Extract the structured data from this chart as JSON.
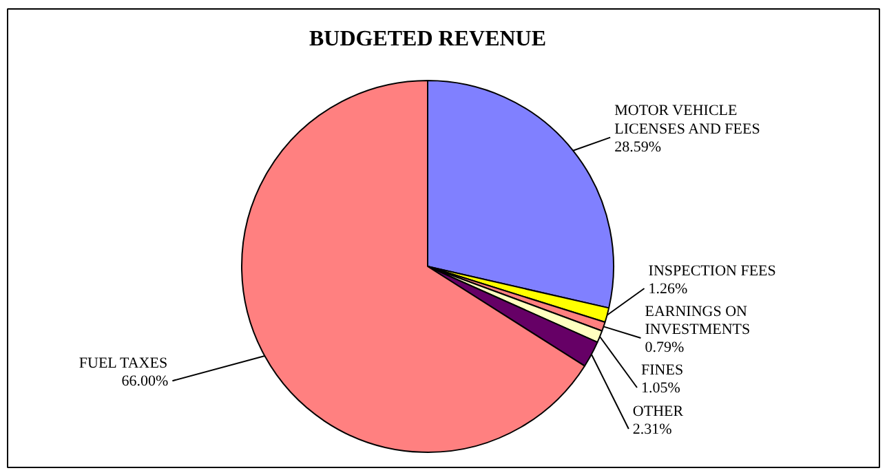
{
  "chart_data": {
    "type": "pie",
    "title": "BUDGETED REVENUE",
    "categories": [
      "MOTOR VEHICLE LICENSES AND FEES",
      "INSPECTION FEES",
      "EARNINGS ON INVESTMENTS",
      "FINES",
      "OTHER",
      "FUEL TAXES"
    ],
    "values": [
      28.59,
      1.26,
      0.79,
      1.05,
      2.31,
      66.0
    ],
    "value_labels": [
      "28.59%",
      "1.26%",
      "0.79%",
      "1.05%",
      "2.31%",
      "66.00%"
    ],
    "colors": [
      "#8080ff",
      "#ffff00",
      "#ff8080",
      "#ffffc0",
      "#660066",
      "#ff8080"
    ]
  }
}
